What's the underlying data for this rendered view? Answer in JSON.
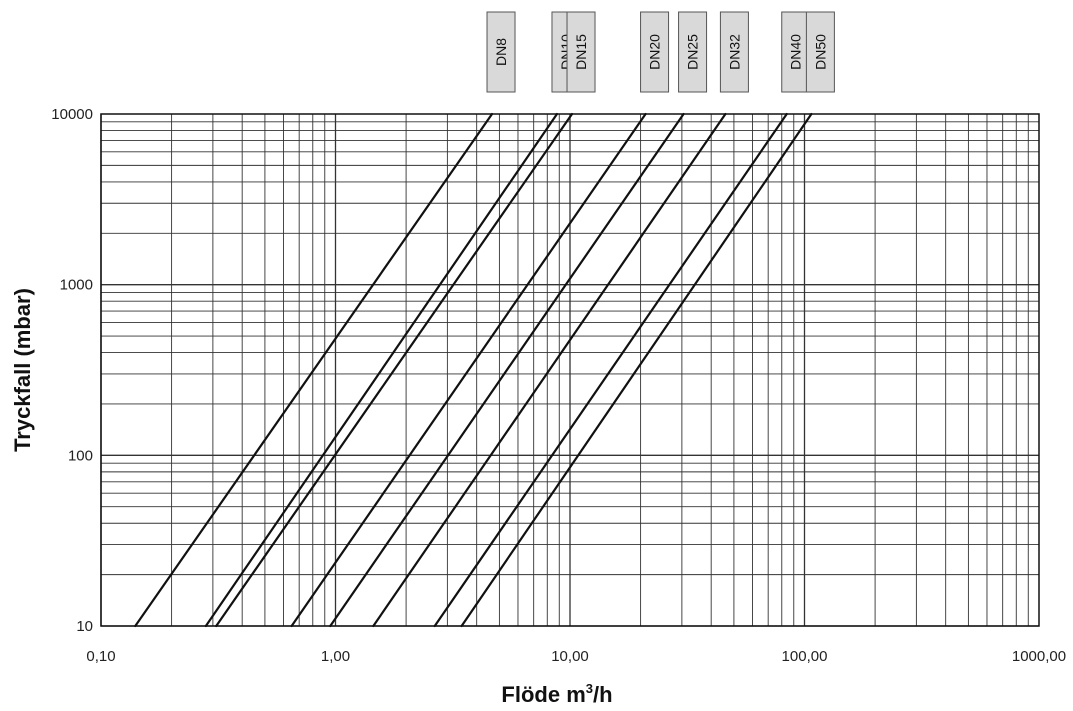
{
  "chart_data": {
    "type": "line",
    "x_scale": "log",
    "y_scale": "log",
    "xlim": [
      0.1,
      1000
    ],
    "ylim": [
      10,
      10000
    ],
    "grid": true,
    "xlabel_main": "Flöde m",
    "xlabel_sup": "3",
    "xlabel_tail": "/h",
    "ylabel": "Tryckfall (mbar)",
    "x_ticks": [
      {
        "value": 0.1,
        "label": "0,10"
      },
      {
        "value": 1,
        "label": "1,00"
      },
      {
        "value": 10,
        "label": "10,00"
      },
      {
        "value": 100,
        "label": "100,00"
      },
      {
        "value": 1000,
        "label": "1000,00"
      }
    ],
    "y_ticks": [
      {
        "value": 10,
        "label": "10"
      },
      {
        "value": 100,
        "label": "100"
      },
      {
        "value": 1000,
        "label": "1000"
      },
      {
        "value": 10000,
        "label": "10000"
      }
    ],
    "series": [
      {
        "name": "DN8",
        "x": [
          0.14,
          4.65
        ],
        "y": [
          10,
          10000
        ]
      },
      {
        "name": "DN10",
        "x": [
          0.28,
          8.8
        ],
        "y": [
          10,
          10000
        ]
      },
      {
        "name": "DN15",
        "x": [
          0.31,
          10.2
        ],
        "y": [
          10,
          10000
        ]
      },
      {
        "name": "DN20",
        "x": [
          0.65,
          21.0
        ],
        "y": [
          10,
          10000
        ]
      },
      {
        "name": "DN25",
        "x": [
          0.95,
          30.5
        ],
        "y": [
          10,
          10000
        ]
      },
      {
        "name": "DN32",
        "x": [
          1.45,
          46.0
        ],
        "y": [
          10,
          10000
        ]
      },
      {
        "name": "DN40",
        "x": [
          2.65,
          84.0
        ],
        "y": [
          10,
          10000
        ]
      },
      {
        "name": "DN50",
        "x": [
          3.45,
          107.0
        ],
        "y": [
          10,
          10000
        ]
      }
    ]
  }
}
